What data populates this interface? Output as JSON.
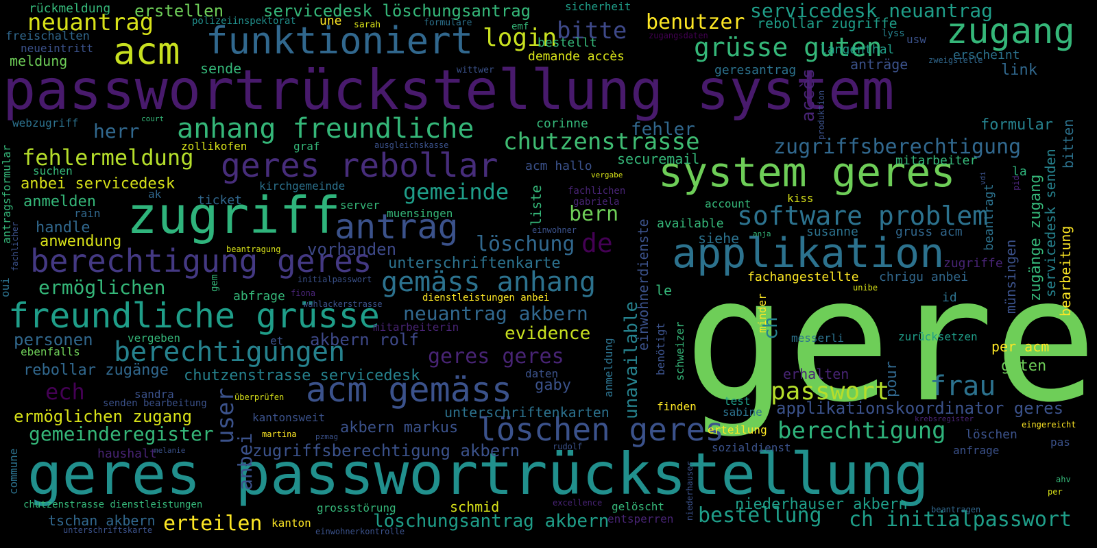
{
  "palette": {
    "background": "#000000",
    "viridis": [
      "#440154",
      "#482777",
      "#3e4989",
      "#31688e",
      "#26828e",
      "#1f9e89",
      "#35b779",
      "#6ece58",
      "#b5de2b",
      "#fde725"
    ]
  },
  "words": [
    {
      "id": "w1",
      "text": "passwortrückstellung system",
      "color": "#481a6c"
    },
    {
      "id": "w2",
      "text": "gere",
      "color": "#6ece58"
    },
    {
      "id": "w3",
      "text": "geres passwortrückstellung",
      "color": "#21908d"
    },
    {
      "id": "w4",
      "text": "zugriff",
      "color": "#2fb47c"
    },
    {
      "id": "w5",
      "text": "system geres",
      "color": "#6ece58"
    },
    {
      "id": "w6",
      "text": "applikation",
      "color": "#2c728e"
    },
    {
      "id": "w7",
      "text": "funktioniert",
      "color": "#31688e"
    },
    {
      "id": "w8",
      "text": "acm",
      "color": "#c8e020"
    },
    {
      "id": "w9",
      "text": "zugang",
      "color": "#35b779"
    },
    {
      "id": "w10",
      "text": "geres rebollar",
      "color": "#472d7b"
    },
    {
      "id": "w11",
      "text": "berechtigung geres",
      "color": "#443983"
    },
    {
      "id": "w12",
      "text": "freundliche grüsse",
      "color": "#1f9e89"
    },
    {
      "id": "w13",
      "text": "acm gemäss",
      "color": "#3b528b"
    },
    {
      "id": "w14",
      "text": "anhang freundliche",
      "color": "#35b779"
    },
    {
      "id": "w15",
      "text": "antrag",
      "color": "#3b528b"
    },
    {
      "id": "w16",
      "text": "löschen geres",
      "color": "#3b528b"
    },
    {
      "id": "w17",
      "text": "grüsse guten",
      "color": "#35b779"
    },
    {
      "id": "w18",
      "text": "software problem",
      "color": "#2c728e"
    },
    {
      "id": "w19",
      "text": "gemäss anhang",
      "color": "#2c728e"
    },
    {
      "id": "w20",
      "text": "berechtigungen",
      "color": "#26828e"
    },
    {
      "id": "w21",
      "text": "chutzenstrasse",
      "color": "#3fbc73"
    },
    {
      "id": "w22",
      "text": "neuantrag",
      "color": "#d8e219"
    },
    {
      "id": "w23",
      "text": "login",
      "color": "#c8e020"
    },
    {
      "id": "w24",
      "text": "bitte",
      "color": "#3e4989"
    },
    {
      "id": "w25",
      "text": "benutzer",
      "color": "#fde725"
    },
    {
      "id": "w26",
      "text": "passwort",
      "color": "#b5de2b"
    },
    {
      "id": "w27",
      "text": "frau",
      "color": "#2c728e"
    },
    {
      "id": "w28",
      "text": "berechtigung",
      "color": "#2fb47c"
    },
    {
      "id": "w29",
      "text": "bestellung",
      "color": "#1f9e89"
    },
    {
      "id": "w30",
      "text": "ch initialpasswort",
      "color": "#1f9e89"
    },
    {
      "id": "w31",
      "text": "erteilen",
      "color": "#fde725"
    },
    {
      "id": "w32",
      "text": "löschungsantrag akbern",
      "color": "#1f9e89"
    },
    {
      "id": "w33",
      "text": "servicedesk neuantrag",
      "color": "#1f9e89"
    },
    {
      "id": "w34",
      "text": "servicedesk löschungsantrag",
      "color": "#35b779"
    },
    {
      "id": "w35",
      "text": "erstellen",
      "color": "#6ece58"
    },
    {
      "id": "w36",
      "text": "fehlermeldung",
      "color": "#b5de2b"
    },
    {
      "id": "w37",
      "text": "ermöglichen",
      "color": "#35b779"
    },
    {
      "id": "w38",
      "text": "gemeinde",
      "color": "#1f9e89"
    },
    {
      "id": "w39",
      "text": "zugriffsberechtigung",
      "color": "#31688e"
    },
    {
      "id": "w40",
      "text": "löschung",
      "color": "#31688e"
    },
    {
      "id": "w41",
      "text": "unterschriftenkarte",
      "color": "#2c728e"
    },
    {
      "id": "w42",
      "text": "neuantrag akbern",
      "color": "#31688e"
    },
    {
      "id": "w43",
      "text": "evidence",
      "color": "#c8e020"
    },
    {
      "id": "w44",
      "text": "geres geres",
      "color": "#482475"
    },
    {
      "id": "w45",
      "text": "de",
      "color": "#440154"
    },
    {
      "id": "w46",
      "text": "ech",
      "color": "#440154"
    },
    {
      "id": "w47",
      "text": "herr",
      "color": "#31688e"
    },
    {
      "id": "w48",
      "text": "fehler",
      "color": "#31688e"
    },
    {
      "id": "w49",
      "text": "bern",
      "color": "#6ece58"
    },
    {
      "id": "w50",
      "text": "gemeinderegister",
      "color": "#35b779"
    },
    {
      "id": "w51",
      "text": "zugriffsberechtigung akbern",
      "color": "#3b528b"
    },
    {
      "id": "w52",
      "text": "akbern markus",
      "color": "#3b528b"
    },
    {
      "id": "w53",
      "text": "applikationskoordinator geres",
      "color": "#3b528b"
    },
    {
      "id": "w54",
      "text": "rebollar zugriffe",
      "color": "#1f9e89"
    },
    {
      "id": "w55",
      "text": "niederhauser akbern",
      "color": "#1f9e89"
    },
    {
      "id": "w56",
      "text": "personen",
      "color": "#31688e"
    },
    {
      "id": "w57",
      "text": "vorhanden",
      "color": "#3e4989"
    },
    {
      "id": "w58",
      "text": "akbern rolf",
      "color": "#3e4989"
    },
    {
      "id": "w59",
      "text": "anbei servicedesk",
      "color": "#d8e219"
    },
    {
      "id": "w60",
      "text": "ermöglichen zugang",
      "color": "#d8e219"
    },
    {
      "id": "w61",
      "text": "unterschriftenkarten",
      "color": "#2c728e"
    },
    {
      "id": "w62",
      "text": "chutzenstrasse servicedesk",
      "color": "#26828e"
    },
    {
      "id": "w63",
      "text": "rebollar zugänge",
      "color": "#31688e"
    },
    {
      "id": "w64",
      "text": "anmelden",
      "color": "#35b779"
    },
    {
      "id": "w65",
      "text": "handle",
      "color": "#31688e"
    },
    {
      "id": "w66",
      "text": "anwendung",
      "color": "#d8e219"
    },
    {
      "id": "w67",
      "text": "meldung",
      "color": "#6ece58"
    },
    {
      "id": "w68",
      "text": "rückmeldung",
      "color": "#35b779"
    },
    {
      "id": "w69",
      "text": "freischalten",
      "color": "#31688e"
    },
    {
      "id": "w70",
      "text": "neueintritt",
      "color": "#3b528b"
    },
    {
      "id": "w71",
      "text": "sende",
      "color": "#35b779"
    },
    {
      "id": "w72",
      "text": "une",
      "color": "#fde725"
    },
    {
      "id": "w73",
      "text": "sarah",
      "color": "#d8e219"
    },
    {
      "id": "w74",
      "text": "formulare",
      "color": "#2c728e"
    },
    {
      "id": "w75",
      "text": "polizeiinspektorat",
      "color": "#21908d"
    },
    {
      "id": "w76",
      "text": "emf",
      "color": "#35b779"
    },
    {
      "id": "w77",
      "text": "bestellt",
      "color": "#35b779"
    },
    {
      "id": "w78",
      "text": "demande accès",
      "color": "#d8e219"
    },
    {
      "id": "w79",
      "text": "sicherheit",
      "color": "#1f9e89"
    },
    {
      "id": "w80",
      "text": "zugangsdaten",
      "color": "#440154"
    },
    {
      "id": "w81",
      "text": "lyss",
      "color": "#26828e"
    },
    {
      "id": "w82",
      "text": "langenthal",
      "color": "#1f9e89"
    },
    {
      "id": "w83",
      "text": "usw",
      "color": "#3b528b"
    },
    {
      "id": "w84",
      "text": "erscheint",
      "color": "#2c728e"
    },
    {
      "id": "w85",
      "text": "zweigstelle",
      "color": "#31688e"
    },
    {
      "id": "w86",
      "text": "wittwer",
      "color": "#3b528b"
    },
    {
      "id": "w87",
      "text": "geresantrag",
      "color": "#2c728e"
    },
    {
      "id": "w88",
      "text": "anträge",
      "color": "#3b528b"
    },
    {
      "id": "w89",
      "text": "link",
      "color": "#31688e"
    },
    {
      "id": "w90",
      "text": "webzugriff",
      "color": "#2c728e"
    },
    {
      "id": "w91",
      "text": "court",
      "color": "#35b779"
    },
    {
      "id": "w92",
      "text": "corinne",
      "color": "#35b779"
    },
    {
      "id": "w93",
      "text": "formular",
      "color": "#26828e"
    },
    {
      "id": "w94",
      "text": "zollikofen",
      "color": "#d8e219"
    },
    {
      "id": "w95",
      "text": "graf",
      "color": "#35b779"
    },
    {
      "id": "w96",
      "text": "ausgleichskasse",
      "color": "#3b528b"
    },
    {
      "id": "w97",
      "text": "securemail",
      "color": "#35b779"
    },
    {
      "id": "w98",
      "text": "mitarbeiter",
      "color": "#35b779"
    },
    {
      "id": "w99",
      "text": "suchen",
      "color": "#35b779"
    },
    {
      "id": "w100",
      "text": "acm hallo",
      "color": "#3b528b"
    },
    {
      "id": "w101",
      "text": "vergabe",
      "color": "#d8e219"
    },
    {
      "id": "w102",
      "text": "la",
      "color": "#2fb47c"
    },
    {
      "id": "w103",
      "text": "kirchgemeinde",
      "color": "#2c728e"
    },
    {
      "id": "w104",
      "text": "fachlichen",
      "color": "#482475"
    },
    {
      "id": "w105",
      "text": "gabriela",
      "color": "#482475"
    },
    {
      "id": "w106",
      "text": "ak",
      "color": "#31688e"
    },
    {
      "id": "w107",
      "text": "ticket",
      "color": "#31688e"
    },
    {
      "id": "w108",
      "text": "server",
      "color": "#35b779"
    },
    {
      "id": "w109",
      "text": "account",
      "color": "#35b779"
    },
    {
      "id": "w110",
      "text": "kiss",
      "color": "#d8e219"
    },
    {
      "id": "w111",
      "text": "rain",
      "color": "#31688e"
    },
    {
      "id": "w112",
      "text": "muensingen",
      "color": "#35b779"
    },
    {
      "id": "w113",
      "text": "available",
      "color": "#35b779"
    },
    {
      "id": "w114",
      "text": "susanne",
      "color": "#2c728e"
    },
    {
      "id": "w115",
      "text": "gruss acm",
      "color": "#31688e"
    },
    {
      "id": "w116",
      "text": "einwohner",
      "color": "#3b528b"
    },
    {
      "id": "w117",
      "text": "siehe",
      "color": "#2c728e"
    },
    {
      "id": "w118",
      "text": "anja",
      "color": "#35b779"
    },
    {
      "id": "w119",
      "text": "beantragung",
      "color": "#d8e219"
    },
    {
      "id": "w120",
      "text": "fachangestellte",
      "color": "#fde725"
    },
    {
      "id": "w121",
      "text": "chrigu anbei",
      "color": "#31688e"
    },
    {
      "id": "w122",
      "text": "zugriffe",
      "color": "#482475"
    },
    {
      "id": "w123",
      "text": "initialpasswort",
      "color": "#3b528b"
    },
    {
      "id": "w124",
      "text": "abfrage",
      "color": "#35b779"
    },
    {
      "id": "w125",
      "text": "fiona",
      "color": "#482475"
    },
    {
      "id": "w126",
      "text": "wahlackerstrasse",
      "color": "#3b528b"
    },
    {
      "id": "w127",
      "text": "dienstleistungen anbei",
      "color": "#fde725"
    },
    {
      "id": "w128",
      "text": "le",
      "color": "#35b779"
    },
    {
      "id": "w129",
      "text": "unibe",
      "color": "#d8e219"
    },
    {
      "id": "w130",
      "text": "id",
      "color": "#2c728e"
    },
    {
      "id": "w131",
      "text": "mitarbeiterin",
      "color": "#482475"
    },
    {
      "id": "w132",
      "text": "et",
      "color": "#3b528b"
    },
    {
      "id": "w133",
      "text": "messerli",
      "color": "#2c728e"
    },
    {
      "id": "w134",
      "text": "zurücksetzen",
      "color": "#1f9e89"
    },
    {
      "id": "w135",
      "text": "per acm",
      "color": "#fde725"
    },
    {
      "id": "w136",
      "text": "vergeben",
      "color": "#35b779"
    },
    {
      "id": "w137",
      "text": "ebenfalls",
      "color": "#6ece58"
    },
    {
      "id": "w138",
      "text": "guten",
      "color": "#6ece58"
    },
    {
      "id": "w139",
      "text": "daten",
      "color": "#3b528b"
    },
    {
      "id": "w140",
      "text": "erhalten",
      "color": "#482475"
    },
    {
      "id": "w141",
      "text": "gaby",
      "color": "#3b528b"
    },
    {
      "id": "w142",
      "text": "sandra",
      "color": "#3b528b"
    },
    {
      "id": "w143",
      "text": "senden bearbeitung",
      "color": "#3b528b"
    },
    {
      "id": "w144",
      "text": "überprüfen",
      "color": "#d8e219"
    },
    {
      "id": "w145",
      "text": "test",
      "color": "#1f9e89"
    },
    {
      "id": "w146",
      "text": "finden",
      "color": "#fde725"
    },
    {
      "id": "w147",
      "text": "sabine",
      "color": "#2c728e"
    },
    {
      "id": "w148",
      "text": "kantonsweit",
      "color": "#3b528b"
    },
    {
      "id": "w149",
      "text": "krebsregister",
      "color": "#482475"
    },
    {
      "id": "w150",
      "text": "eingereicht",
      "color": "#fde725"
    },
    {
      "id": "w151",
      "text": "martina",
      "color": "#fde725"
    },
    {
      "id": "w152",
      "text": "pzmag",
      "color": "#3b528b"
    },
    {
      "id": "w153",
      "text": "erteilung",
      "color": "#fde725"
    },
    {
      "id": "w154",
      "text": "löschen",
      "color": "#3b528b"
    },
    {
      "id": "w155",
      "text": "haushalt",
      "color": "#482475"
    },
    {
      "id": "w156",
      "text": "melanie",
      "color": "#3b528b"
    },
    {
      "id": "w157",
      "text": "rudolf",
      "color": "#3b528b"
    },
    {
      "id": "w158",
      "text": "sozialdienst",
      "color": "#3b528b"
    },
    {
      "id": "w159",
      "text": "anfrage",
      "color": "#3b528b"
    },
    {
      "id": "w160",
      "text": "pas",
      "color": "#3b528b"
    },
    {
      "id": "w161",
      "text": "ahv",
      "color": "#35b779"
    },
    {
      "id": "w162",
      "text": "per",
      "color": "#d8e219"
    },
    {
      "id": "w163",
      "text": "chutzenstrasse dienstleistungen",
      "color": "#35b779"
    },
    {
      "id": "w164",
      "text": "grossstörung",
      "color": "#35b779"
    },
    {
      "id": "w165",
      "text": "schmid",
      "color": "#d8e219"
    },
    {
      "id": "w166",
      "text": "excellence",
      "color": "#482475"
    },
    {
      "id": "w167",
      "text": "gelöscht",
      "color": "#35b779"
    },
    {
      "id": "w168",
      "text": "beantragen",
      "color": "#31688e"
    },
    {
      "id": "w169",
      "text": "tschan akbern",
      "color": "#31688e"
    },
    {
      "id": "w170",
      "text": "kanton",
      "color": "#fde725"
    },
    {
      "id": "w171",
      "text": "entsperren",
      "color": "#482475"
    },
    {
      "id": "w172",
      "text": "unterschriftskarte",
      "color": "#3b528b"
    },
    {
      "id": "w173",
      "text": "einwohnerkontrolle",
      "color": "#3b528b"
    },
    {
      "id": "w174",
      "text": "user",
      "color": "#3b528b"
    },
    {
      "id": "w175",
      "text": "anbei",
      "color": "#3b528b"
    },
    {
      "id": "w176",
      "text": "liste",
      "color": "#35b779"
    },
    {
      "id": "w177",
      "text": "unavailable",
      "color": "#26828e"
    },
    {
      "id": "w178",
      "text": "einwohnerdienste",
      "color": "#3b528b"
    },
    {
      "id": "w179",
      "text": "anmeldung",
      "color": "#2c728e"
    },
    {
      "id": "w180",
      "text": "benötigt",
      "color": "#3b528b"
    },
    {
      "id": "w181",
      "text": "schweizer",
      "color": "#35b779"
    },
    {
      "id": "w182",
      "text": "minder",
      "color": "#fde725"
    },
    {
      "id": "w183",
      "text": "niederhauser",
      "color": "#3b528b"
    },
    {
      "id": "w184",
      "text": "ch",
      "color": "#26828e"
    },
    {
      "id": "w185",
      "text": "pour",
      "color": "#31688e"
    },
    {
      "id": "w186",
      "text": "accès",
      "color": "#482475"
    },
    {
      "id": "w187",
      "text": "produktion",
      "color": "#3b528b"
    },
    {
      "id": "w188",
      "text": "beantragt",
      "color": "#2c728e"
    },
    {
      "id": "w189",
      "text": "münsingen",
      "color": "#3b528b"
    },
    {
      "id": "w190",
      "text": "zugänge zugang",
      "color": "#35b779"
    },
    {
      "id": "w191",
      "text": "servicedesk senden",
      "color": "#26828e"
    },
    {
      "id": "w192",
      "text": "bearbeitung",
      "color": "#fde725"
    },
    {
      "id": "w193",
      "text": "bitten",
      "color": "#2c728e"
    },
    {
      "id": "w194",
      "text": "vdi",
      "color": "#3b528b"
    },
    {
      "id": "w195",
      "text": "pid",
      "color": "#482475"
    },
    {
      "id": "w196",
      "text": "antragsformular",
      "color": "#35b779"
    },
    {
      "id": "w197",
      "text": "fachlicher",
      "color": "#3b528b"
    },
    {
      "id": "w198",
      "text": "oui",
      "color": "#2c728e"
    },
    {
      "id": "w199",
      "text": "gem",
      "color": "#35b779"
    },
    {
      "id": "w200",
      "text": "commune",
      "color": "#2c728e"
    }
  ]
}
